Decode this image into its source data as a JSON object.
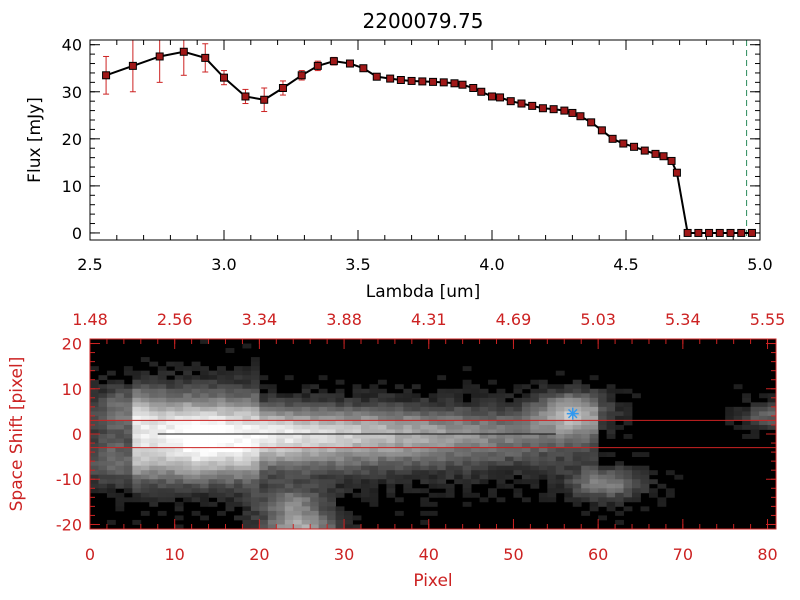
{
  "colors": {
    "background": "#ffffff",
    "axis_top": "#000000",
    "axis_bottom": "#cc2222",
    "marker": "#a01818",
    "errorbar": "#cc2222",
    "line": "#000000",
    "dashed_line": "#2a8a5a",
    "slit_lines": "#cc2222",
    "star_marker": "#3399ee"
  },
  "chart_data": [
    {
      "type": "line",
      "title": "2200079.75",
      "xlabel": "Lambda [um]",
      "ylabel": "Flux [mJy]",
      "xlim": [
        2.5,
        5.0
      ],
      "ylim": [
        -1.5,
        41
      ],
      "xticks": [
        "2.5",
        "3.0",
        "3.5",
        "4.0",
        "4.5",
        "5.0"
      ],
      "xtick_values": [
        2.5,
        3.0,
        3.5,
        4.0,
        4.5,
        5.0
      ],
      "yticks": [
        "0",
        "10",
        "20",
        "30",
        "40"
      ],
      "ytick_values": [
        0,
        10,
        20,
        30,
        40
      ],
      "series": [
        {
          "x": [
            2.56,
            2.66,
            2.76,
            2.85,
            2.93,
            3.0,
            3.08,
            3.15,
            3.22,
            3.29,
            3.35,
            3.41,
            3.47,
            3.52,
            3.57,
            3.62,
            3.66,
            3.7,
            3.74,
            3.78,
            3.82,
            3.86,
            3.89,
            3.93,
            3.96,
            4.0,
            4.03,
            4.07,
            4.11,
            4.15,
            4.19,
            4.23,
            4.27,
            4.3,
            4.33,
            4.37,
            4.41,
            4.45,
            4.49,
            4.53,
            4.57,
            4.61,
            4.64,
            4.67,
            4.69,
            4.73,
            4.77,
            4.81,
            4.85,
            4.89,
            4.93,
            4.97
          ],
          "y": [
            33.5,
            35.5,
            37.5,
            38.5,
            37.2,
            33.0,
            29.0,
            28.3,
            30.8,
            33.5,
            35.5,
            36.5,
            36.0,
            35.0,
            33.2,
            32.8,
            32.5,
            32.3,
            32.2,
            32.1,
            32.0,
            31.8,
            31.5,
            30.8,
            30.0,
            29.0,
            28.8,
            28.0,
            27.5,
            27.0,
            26.5,
            26.3,
            26.0,
            25.5,
            24.8,
            23.5,
            21.8,
            20.0,
            19.0,
            18.3,
            17.5,
            16.8,
            16.3,
            15.3,
            12.8,
            0,
            0,
            0,
            0,
            0,
            0,
            0
          ],
          "yerr": [
            4.0,
            5.5,
            5.5,
            5.0,
            3.0,
            1.5,
            1.5,
            2.5,
            1.5,
            1.0,
            1.0,
            0.8,
            0.6,
            0.5,
            0.5,
            0.5,
            0.5,
            0.5,
            0.5,
            0.5,
            0.5,
            0.5,
            0.5,
            0.5,
            0.5,
            0.5,
            0.5,
            0.5,
            0.5,
            0.5,
            0.5,
            0.5,
            0.5,
            0.5,
            0.5,
            0.5,
            0.5,
            0.5,
            0.5,
            0.5,
            0.5,
            0.5,
            0.5,
            0.5,
            0.5,
            0.5,
            0.5,
            0.5,
            0.5,
            0.5,
            0.5,
            0.5
          ]
        }
      ],
      "vline_x": 4.95
    },
    {
      "type": "heatmap",
      "xlabel": "Pixel",
      "ylabel": "Space Shift [pixel]",
      "xlim": [
        0,
        81
      ],
      "ylim": [
        -21,
        21
      ],
      "xticks": [
        "0",
        "10",
        "20",
        "30",
        "40",
        "50",
        "60",
        "70",
        "80"
      ],
      "xtick_values": [
        0,
        10,
        20,
        30,
        40,
        50,
        60,
        70,
        80
      ],
      "yticks": [
        "-20",
        "-10",
        "0",
        "10",
        "20"
      ],
      "ytick_values": [
        -20,
        -10,
        0,
        10,
        20
      ],
      "top_axis_ticks": [
        "1.48",
        "2.56",
        "3.34",
        "3.88",
        "4.31",
        "4.69",
        "5.03",
        "5.34",
        "5.55"
      ],
      "slit_lines_y": [
        3,
        -3
      ],
      "trace": {
        "x_start": 5,
        "x_end": 60,
        "peak_x": 12,
        "y_center": 0,
        "width": 3.5
      },
      "blobs": [
        {
          "x": 57,
          "y": 5,
          "sx": 3,
          "sy": 3,
          "v": 0.55
        },
        {
          "x": 61,
          "y": -11,
          "sx": 3,
          "sy": 2.5,
          "v": 0.45
        },
        {
          "x": 24,
          "y": -16,
          "sx": 3,
          "sy": 3,
          "v": 0.45
        },
        {
          "x": 25,
          "y": -21,
          "sx": 3,
          "sy": 2,
          "v": 0.5
        },
        {
          "x": 4,
          "y": 5,
          "sx": 3,
          "sy": 4,
          "v": 0.4
        },
        {
          "x": 80,
          "y": 4,
          "sx": 2,
          "sy": 2,
          "v": 0.35
        },
        {
          "x": 3,
          "y": -6,
          "sx": 3,
          "sy": 4,
          "v": 0.35
        }
      ],
      "star": {
        "x": 57,
        "y": 4.5
      }
    }
  ]
}
